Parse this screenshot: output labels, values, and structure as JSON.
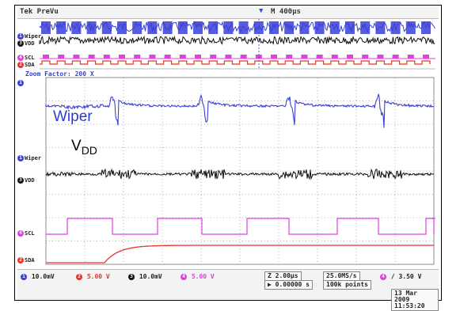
{
  "header": {
    "brand": "Tek PreVu",
    "timebase": "M 400μs",
    "zoom_factor": "Zoom Factor: 200 X"
  },
  "channels": {
    "wiper_tag": "Wiper",
    "vdd_tag": "VDD",
    "scl_tag": "SCL",
    "sda_tag": "SDA",
    "ch1": "1",
    "ch2": "2",
    "ch3": "3",
    "ch4": "4"
  },
  "annotations": {
    "wiper": "Wiper",
    "vdd_main": "V",
    "vdd_sub": "DD"
  },
  "status": {
    "ch1_scale": "10.0mV",
    "ch2_scale": "5.00 V",
    "ch3_scale": "10.0mV",
    "ch4_scale": "5.00 V",
    "time_div": "Z 2.00μs",
    "time_offset": "▶ 0.00000 s",
    "sample_rate": "25.0MS/s",
    "record_length": "100k points",
    "trigger_slope": "/",
    "trigger_level": "3.50 V",
    "date": "13 Mar 2009",
    "time": "11:53:20"
  },
  "colors": {
    "wiper": "#3a3fd8",
    "vdd": "#111111",
    "scl": "#e040e0",
    "sda": "#e8322a",
    "grid": "#9a9a9a",
    "background": "#ffffff"
  }
}
